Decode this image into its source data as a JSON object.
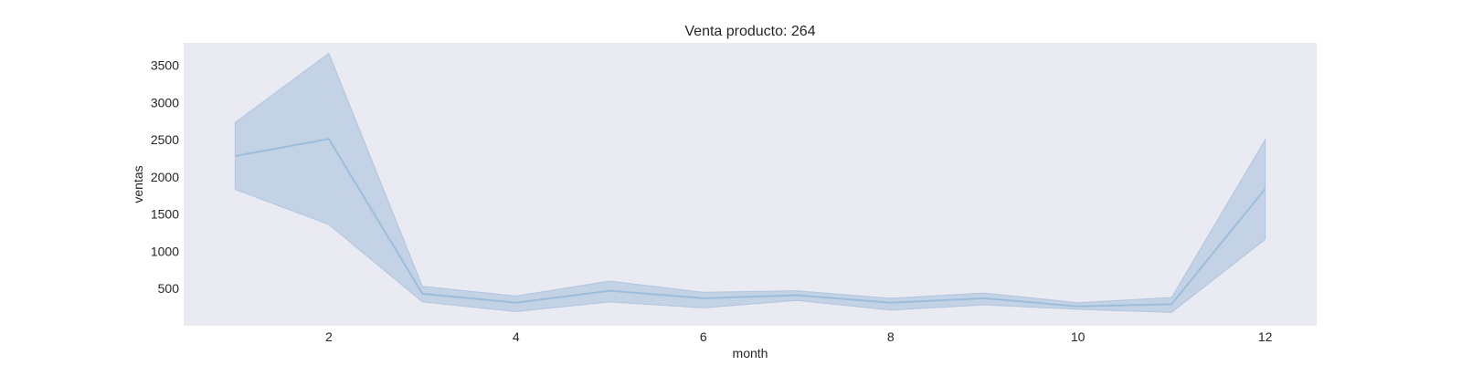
{
  "chart_data": {
    "type": "line",
    "title": "Venta producto: 264",
    "xlabel": "month",
    "ylabel": "ventas",
    "xlim": [
      0.45,
      12.55
    ],
    "ylim": [
      0,
      3800
    ],
    "xticks": [
      2,
      4,
      6,
      8,
      10,
      12
    ],
    "yticks": [
      500,
      1000,
      1500,
      2000,
      2500,
      3000,
      3500
    ],
    "grid": false,
    "colors": {
      "background": "#eaeaf2",
      "line": "#9dbedb",
      "band": "#a9c1dc"
    },
    "series": [
      {
        "x": [
          1,
          2,
          3,
          4,
          5,
          6,
          7,
          8,
          9,
          10,
          11,
          12
        ],
        "values": [
          2280,
          2510,
          430,
          310,
          470,
          370,
          410,
          310,
          370,
          260,
          290,
          1840
        ],
        "ci_lower": [
          1830,
          1360,
          320,
          190,
          320,
          240,
          340,
          210,
          280,
          220,
          180,
          1160
        ],
        "ci_upper": [
          2730,
          3660,
          530,
          400,
          600,
          450,
          470,
          370,
          440,
          310,
          380,
          2500
        ]
      }
    ]
  }
}
